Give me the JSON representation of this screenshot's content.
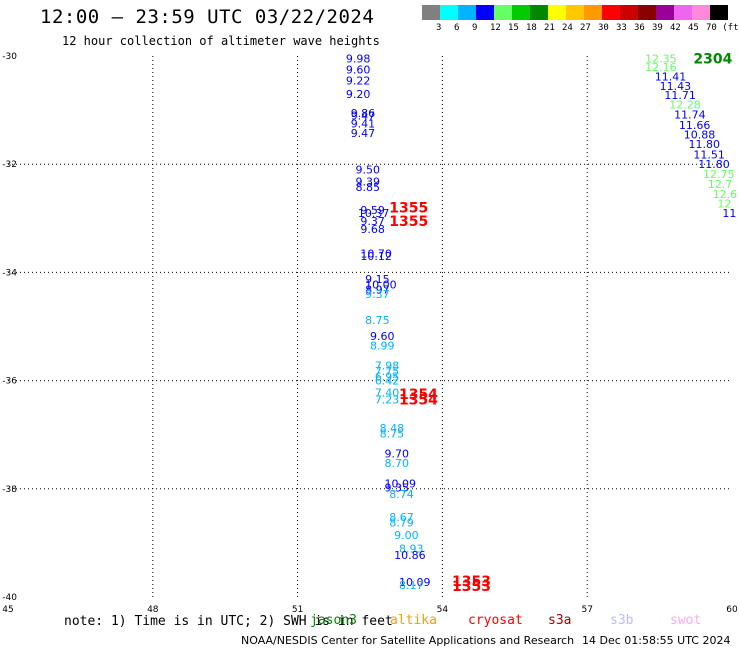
{
  "title": "12:00 — 23:59 UTC 03/22/2024",
  "subtitle": "12 hour collection of altimeter wave heights",
  "scale": {
    "colors": [
      "#808080",
      "#00ffff",
      "#00b4ff",
      "#0000ff",
      "#66ff66",
      "#00cc00",
      "#008800",
      "#ffff00",
      "#ffc800",
      "#ff9900",
      "#ff0000",
      "#cc0000",
      "#880000",
      "#990099",
      "#ee66ee",
      "#ff88dd",
      "#000000"
    ],
    "labels": [
      "3",
      "6",
      "9",
      "12",
      "15",
      "18",
      "21",
      "24",
      "27",
      "30",
      "33",
      "36",
      "39",
      "42",
      "45",
      "70 (ft)"
    ]
  },
  "chart_data": {
    "type": "scatter",
    "xlim": [
      45,
      60
    ],
    "ylim": [
      -40,
      -30
    ],
    "x_ticks": [
      "45",
      "48",
      "51",
      "54",
      "57",
      "60"
    ],
    "y_ticks": [
      "-30",
      "-32",
      "-34",
      "-36",
      "-38",
      "-40"
    ],
    "grid": true,
    "points": [
      {
        "lon": 52.0,
        "lat": -30.05,
        "v": "9.98",
        "c": "#0000ff"
      },
      {
        "lon": 52.0,
        "lat": -30.25,
        "v": "9.60",
        "c": "#0000ff"
      },
      {
        "lon": 52.0,
        "lat": -30.45,
        "v": "9.22",
        "c": "#0000ff"
      },
      {
        "lon": 52.0,
        "lat": -30.7,
        "v": "9.20",
        "c": "#0000ff"
      },
      {
        "lon": 52.1,
        "lat": -31.05,
        "v": "9.86",
        "c": "#0000ff"
      },
      {
        "lon": 52.1,
        "lat": -31.1,
        "v": "9.47",
        "c": "#0000ff"
      },
      {
        "lon": 52.1,
        "lat": -31.25,
        "v": "9.41",
        "c": "#0000ff"
      },
      {
        "lon": 52.1,
        "lat": -31.42,
        "v": "9.47",
        "c": "#0000ff"
      },
      {
        "lon": 52.2,
        "lat": -32.1,
        "v": "9.50",
        "c": "#0000ff"
      },
      {
        "lon": 52.2,
        "lat": -32.32,
        "v": "9.39",
        "c": "#0000ff"
      },
      {
        "lon": 52.2,
        "lat": -32.42,
        "v": "8.85",
        "c": "#0000ff"
      },
      {
        "lon": 52.3,
        "lat": -32.85,
        "v": "9.59",
        "c": "#0000ff"
      },
      {
        "lon": 52.25,
        "lat": -32.9,
        "v": "10.37",
        "c": "#0000ff"
      },
      {
        "lon": 52.3,
        "lat": -33.05,
        "v": "9.37",
        "c": "#0000ff"
      },
      {
        "lon": 52.3,
        "lat": -33.2,
        "v": "9.68",
        "c": "#0000ff"
      },
      {
        "lon": 52.3,
        "lat": -33.65,
        "v": "10.70",
        "c": "#0000ff"
      },
      {
        "lon": 52.3,
        "lat": -33.7,
        "v": "10.12",
        "c": "#0000ff"
      },
      {
        "lon": 52.4,
        "lat": -34.12,
        "v": "9.15",
        "c": "#0000ff"
      },
      {
        "lon": 52.4,
        "lat": -34.22,
        "v": "10.00",
        "c": "#0000ff"
      },
      {
        "lon": 52.4,
        "lat": -34.32,
        "v": "8.97",
        "c": "#0000ff"
      },
      {
        "lon": 52.4,
        "lat": -34.4,
        "v": "9.37",
        "c": "#00b4ff"
      },
      {
        "lon": 52.4,
        "lat": -34.88,
        "v": "8.75",
        "c": "#00b4ff"
      },
      {
        "lon": 52.5,
        "lat": -35.18,
        "v": "9.60",
        "c": "#0000ff"
      },
      {
        "lon": 52.5,
        "lat": -35.35,
        "v": "8.99",
        "c": "#00b4ff"
      },
      {
        "lon": 52.6,
        "lat": -35.72,
        "v": "7.98",
        "c": "#00b4ff"
      },
      {
        "lon": 52.6,
        "lat": -35.82,
        "v": "7.75",
        "c": "#00b4ff"
      },
      {
        "lon": 52.6,
        "lat": -35.92,
        "v": "6.95",
        "c": "#00b4ff"
      },
      {
        "lon": 52.6,
        "lat": -36.0,
        "v": "6.42",
        "c": "#00b4ff"
      },
      {
        "lon": 52.6,
        "lat": -36.22,
        "v": "7.40",
        "c": "#00b4ff"
      },
      {
        "lon": 52.6,
        "lat": -36.35,
        "v": "7.23",
        "c": "#00b4ff"
      },
      {
        "lon": 52.7,
        "lat": -36.88,
        "v": "8.48",
        "c": "#00b4ff"
      },
      {
        "lon": 52.7,
        "lat": -36.98,
        "v": "8.75",
        "c": "#00b4ff"
      },
      {
        "lon": 52.8,
        "lat": -37.35,
        "v": "9.70",
        "c": "#0000ff"
      },
      {
        "lon": 52.8,
        "lat": -37.52,
        "v": "8.70",
        "c": "#00b4ff"
      },
      {
        "lon": 52.8,
        "lat": -37.9,
        "v": "10.09",
        "c": "#0000ff"
      },
      {
        "lon": 52.8,
        "lat": -37.98,
        "v": "9.35",
        "c": "#0000ff"
      },
      {
        "lon": 52.9,
        "lat": -38.1,
        "v": "8.74",
        "c": "#00b4ff"
      },
      {
        "lon": 52.9,
        "lat": -38.52,
        "v": "8.67",
        "c": "#00b4ff"
      },
      {
        "lon": 52.9,
        "lat": -38.62,
        "v": "8.79",
        "c": "#00b4ff"
      },
      {
        "lon": 53.0,
        "lat": -38.85,
        "v": "9.00",
        "c": "#00b4ff"
      },
      {
        "lon": 53.1,
        "lat": -39.1,
        "v": "8.93",
        "c": "#00b4ff"
      },
      {
        "lon": 53.0,
        "lat": -39.22,
        "v": "10.86",
        "c": "#0000ff"
      },
      {
        "lon": 53.1,
        "lat": -39.72,
        "v": "10.09",
        "c": "#0000ff"
      },
      {
        "lon": 53.1,
        "lat": -39.78,
        "v": "8.17",
        "c": "#00b4ff"
      },
      {
        "lon": 58.2,
        "lat": -30.05,
        "v": "12.35",
        "c": "#66ff66"
      },
      {
        "lon": 58.2,
        "lat": -30.2,
        "v": "12.16",
        "c": "#66ff66"
      },
      {
        "lon": 58.4,
        "lat": -30.38,
        "v": "11.41",
        "c": "#0000ff"
      },
      {
        "lon": 58.5,
        "lat": -30.55,
        "v": "11.43",
        "c": "#0000ff"
      },
      {
        "lon": 58.6,
        "lat": -30.72,
        "v": "11.71",
        "c": "#0000ff"
      },
      {
        "lon": 58.7,
        "lat": -30.9,
        "v": "12.28",
        "c": "#66ff66"
      },
      {
        "lon": 58.8,
        "lat": -31.08,
        "v": "11.74",
        "c": "#0000ff"
      },
      {
        "lon": 58.9,
        "lat": -31.28,
        "v": "11.66",
        "c": "#0000ff"
      },
      {
        "lon": 59.0,
        "lat": -31.45,
        "v": "10.88",
        "c": "#0000ff"
      },
      {
        "lon": 59.1,
        "lat": -31.63,
        "v": "11.80",
        "c": "#0000ff"
      },
      {
        "lon": 59.2,
        "lat": -31.82,
        "v": "11.51",
        "c": "#0000ff"
      },
      {
        "lon": 59.3,
        "lat": -32.0,
        "v": "11.80",
        "c": "#0000ff"
      },
      {
        "lon": 59.4,
        "lat": -32.18,
        "v": "12.75",
        "c": "#66ff66"
      },
      {
        "lon": 59.5,
        "lat": -32.37,
        "v": "12.7",
        "c": "#66ff66"
      },
      {
        "lon": 59.6,
        "lat": -32.55,
        "v": "12.6",
        "c": "#66ff66"
      },
      {
        "lon": 59.7,
        "lat": -32.73,
        "v": "12",
        "c": "#66ff66"
      },
      {
        "lon": 59.8,
        "lat": -32.9,
        "v": "11",
        "c": "#0000ff"
      }
    ],
    "pass_labels": [
      {
        "lon": 52.9,
        "lat": -32.8,
        "v": "1355",
        "c": "#ff0000"
      },
      {
        "lon": 52.9,
        "lat": -33.05,
        "v": "1355",
        "c": "#ff0000"
      },
      {
        "lon": 53.1,
        "lat": -36.25,
        "v": "1354",
        "c": "#ff0000"
      },
      {
        "lon": 53.1,
        "lat": -36.35,
        "v": "1354",
        "c": "#ff0000"
      },
      {
        "lon": 54.2,
        "lat": -39.7,
        "v": "1353",
        "c": "#ff0000"
      },
      {
        "lon": 54.2,
        "lat": -39.8,
        "v": "1353",
        "c": "#ff0000"
      },
      {
        "lon": 59.2,
        "lat": -30.05,
        "v": "2304",
        "c": "#008800"
      }
    ]
  },
  "note": "note: 1) Time is in UTC; 2) SWH is in feet",
  "satellites": [
    {
      "name": "jason3",
      "color": "#008800"
    },
    {
      "name": "altika",
      "color": "#ff9900"
    },
    {
      "name": "cryosat",
      "color": "#ff0000"
    },
    {
      "name": "s3a",
      "color": "#990000"
    },
    {
      "name": "s3b",
      "color": "#bbbbff"
    },
    {
      "name": "swot",
      "color": "#ffaaee"
    }
  ],
  "footer": "NOAA/NESDIS Center for Satellite Applications and Research",
  "footer_date": "14 Dec 01:58:55 UTC 2024"
}
